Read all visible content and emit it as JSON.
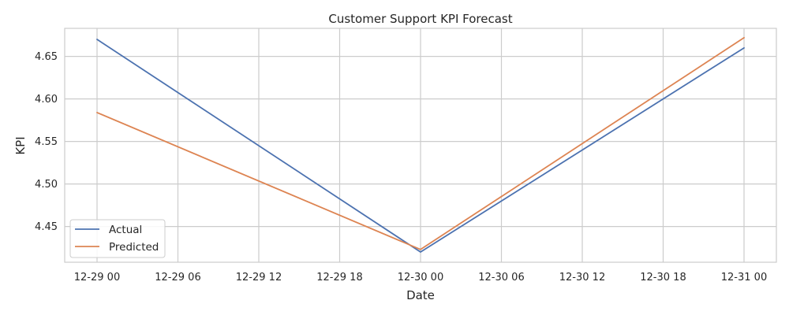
{
  "chart_data": {
    "type": "line",
    "title": "Customer Support KPI Forecast",
    "xlabel": "Date",
    "ylabel": "KPI",
    "x": [
      "12-29 00",
      "12-30 00",
      "12-31 00"
    ],
    "x_hours": [
      0,
      24,
      48
    ],
    "x_ticks": [
      "12-29 00",
      "12-29 06",
      "12-29 12",
      "12-29 18",
      "12-30 00",
      "12-30 06",
      "12-30 12",
      "12-30 18",
      "12-31 00"
    ],
    "x_tick_hours": [
      0,
      6,
      12,
      18,
      24,
      30,
      36,
      42,
      48
    ],
    "xlim": [
      -2.4,
      50.4
    ],
    "y_ticks": [
      4.45,
      4.5,
      4.55,
      4.6,
      4.65
    ],
    "y_tick_labels": [
      "4.45",
      "4.50",
      "4.55",
      "4.60",
      "4.65"
    ],
    "ylim": [
      4.408,
      4.683
    ],
    "grid": true,
    "legend_position": "lower-left",
    "series": [
      {
        "name": "Actual",
        "values": [
          4.67,
          4.42,
          4.66
        ],
        "color": "#4c72b0"
      },
      {
        "name": "Predicted",
        "values": [
          4.584,
          4.423,
          4.672
        ],
        "color": "#dd8452"
      }
    ]
  }
}
